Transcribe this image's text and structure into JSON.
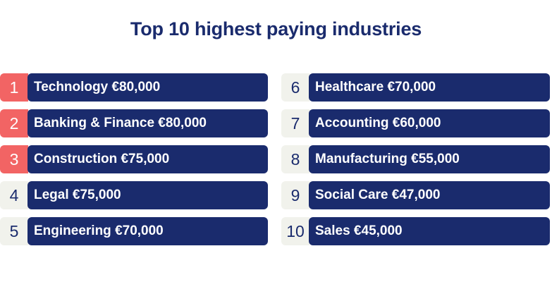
{
  "title": "Top 10 highest paying industries",
  "colors": {
    "navy": "#1a2b6d",
    "highlight": "#f26464",
    "rank_bg": "#f1f2ec"
  },
  "industries": [
    {
      "rank": "1",
      "label": "Technology €80,000",
      "highlighted": true
    },
    {
      "rank": "2",
      "label": "Banking & Finance €80,000",
      "highlighted": true
    },
    {
      "rank": "3",
      "label": "Construction €75,000",
      "highlighted": true
    },
    {
      "rank": "4",
      "label": "Legal €75,000",
      "highlighted": false
    },
    {
      "rank": "5",
      "label": "Engineering €70,000",
      "highlighted": false
    },
    {
      "rank": "6",
      "label": "Healthcare €70,000",
      "highlighted": false
    },
    {
      "rank": "7",
      "label": "Accounting €60,000",
      "highlighted": false
    },
    {
      "rank": "8",
      "label": "Manufacturing €55,000",
      "highlighted": false
    },
    {
      "rank": "9",
      "label": "Social Care €47,000",
      "highlighted": false
    },
    {
      "rank": "10",
      "label": "Sales €45,000",
      "highlighted": false
    }
  ]
}
